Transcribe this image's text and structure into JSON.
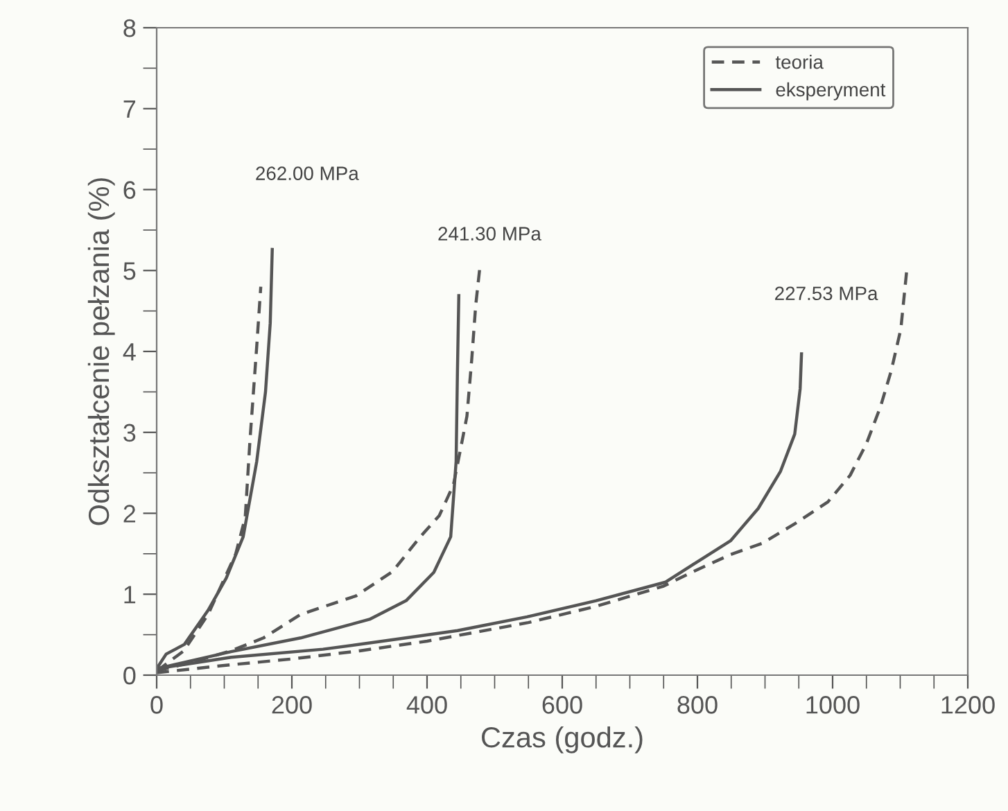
{
  "chart_data": {
    "type": "line",
    "xlabel": "Czas (godz.)",
    "ylabel": "Odkształcenie pełzania (%)",
    "xlim": [
      0,
      1200
    ],
    "ylim": [
      0,
      8
    ],
    "xticks": [
      0,
      200,
      400,
      600,
      800,
      1000,
      1200
    ],
    "yticks": [
      0,
      1,
      2,
      3,
      4,
      5,
      6,
      7,
      8
    ],
    "grid": false,
    "legend": "top right",
    "marker": "none",
    "series": [
      {
        "name": "teoria",
        "color": "#555555",
        "line_style": "dashed",
        "x": [
          0,
          40,
          76,
          117,
          131,
          138,
          148,
          154
        ],
        "values": [
          0.05,
          0.3,
          0.75,
          1.5,
          1.95,
          2.9,
          4.06,
          4.8
        ]
      },
      {
        "name": "eksperyment",
        "color": "#555555",
        "line_style": "solid",
        "x": [
          0,
          14,
          41,
          76,
          103,
          128,
          148,
          161,
          168,
          171
        ],
        "values": [
          0.08,
          0.26,
          0.38,
          0.8,
          1.2,
          1.71,
          2.64,
          3.5,
          4.35,
          5.26
        ]
      },
      {
        "color": "#555555",
        "line_style": "dashed",
        "x": [
          0,
          60,
          110,
          158,
          213,
          295,
          349,
          390,
          418,
          439,
          449,
          459,
          466,
          472,
          478
        ],
        "values": [
          0.05,
          0.18,
          0.3,
          0.46,
          0.75,
          0.98,
          1.28,
          1.71,
          1.97,
          2.35,
          2.77,
          3.2,
          3.89,
          4.57,
          5.03
        ]
      },
      {
        "color": "#555555",
        "line_style": "solid",
        "x": [
          0,
          110,
          213,
          315,
          369,
          410,
          435,
          443,
          445,
          447
        ],
        "values": [
          0.08,
          0.29,
          0.46,
          0.69,
          0.92,
          1.27,
          1.71,
          2.64,
          3.77,
          4.69
        ]
      },
      {
        "color": "#555555",
        "line_style": "dashed",
        "x": [
          0,
          100,
          200,
          300,
          400,
          550,
          650,
          750,
          794,
          849,
          896,
          944,
          993,
          1026,
          1050,
          1071,
          1087,
          1101,
          1110
        ],
        "values": [
          0.03,
          0.12,
          0.2,
          0.3,
          0.42,
          0.65,
          0.85,
          1.1,
          1.28,
          1.49,
          1.63,
          1.87,
          2.14,
          2.47,
          2.86,
          3.32,
          3.77,
          4.28,
          5.03
        ]
      },
      {
        "color": "#555555",
        "line_style": "solid",
        "x": [
          0,
          110,
          246,
          343,
          445,
          548,
          650,
          753,
          794,
          849,
          890,
          923,
          944,
          952,
          954
        ],
        "values": [
          0.08,
          0.22,
          0.32,
          0.43,
          0.55,
          0.72,
          0.92,
          1.15,
          1.37,
          1.66,
          2.06,
          2.52,
          2.98,
          3.54,
          3.97
        ]
      }
    ],
    "annotations": [
      "262.00 MPa",
      "241.30 MPa",
      "227.53 MPa"
    ]
  }
}
